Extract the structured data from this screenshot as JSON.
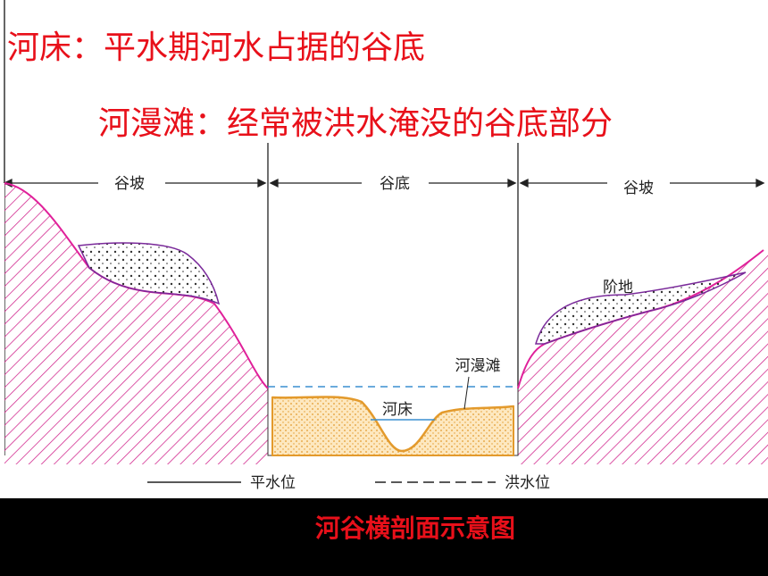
{
  "definitions": [
    "河床：平水期河水占据的谷底",
    "河漫滩：经常被洪水淹没的谷底部分"
  ],
  "sections": [
    "谷坡",
    "谷底",
    "谷坡"
  ],
  "labels": {
    "terrace": "阶地",
    "floodplain": "河漫滩",
    "riverbed": "河床"
  },
  "legend": {
    "normal": "平水位",
    "flood": "洪水位"
  },
  "caption": "河谷横剖面示意图"
}
